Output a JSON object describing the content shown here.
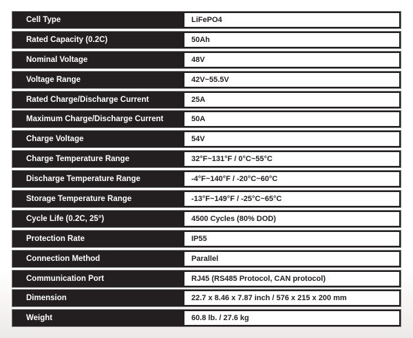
{
  "specs": [
    {
      "label": "Cell Type",
      "value": "LiFePO4"
    },
    {
      "label": "Rated Capacity (0.2C)",
      "value": "50Ah"
    },
    {
      "label": "Nominal Voltage",
      "value": "48V"
    },
    {
      "label": "Voltage Range",
      "value": "42V~55.5V"
    },
    {
      "label": "Rated Charge/Discharge Current",
      "value": "25A"
    },
    {
      "label": "Maximum Charge/Discharge Current",
      "value": "50A"
    },
    {
      "label": "Charge Voltage",
      "value": "54V"
    },
    {
      "label": "Charge Temperature Range",
      "value": "32°F~131°F / 0°C~55°C"
    },
    {
      "label": "Discharge Temperature Range",
      "value": "-4°F~140°F / -20°C~60°C"
    },
    {
      "label": "Storage Temperature Range",
      "value": "-13°F~149°F / -25°C~65°C"
    },
    {
      "label": "Cycle Life (0.2C, 25°)",
      "value": "4500 Cycles (80% DOD)"
    },
    {
      "label": "Protection Rate",
      "value": "IP55"
    },
    {
      "label": "Connection Method",
      "value": "Parallel"
    },
    {
      "label": "Communication Port",
      "value": "RJ45 (RS485 Protocol, CAN protocol)"
    },
    {
      "label": "Dimension",
      "value": "22.7 x 8.46 x 7.87 inch /  576 x 215 x 200 mm"
    },
    {
      "label": "Weight",
      "value": "60.8 lb. / 27.6 kg"
    }
  ]
}
